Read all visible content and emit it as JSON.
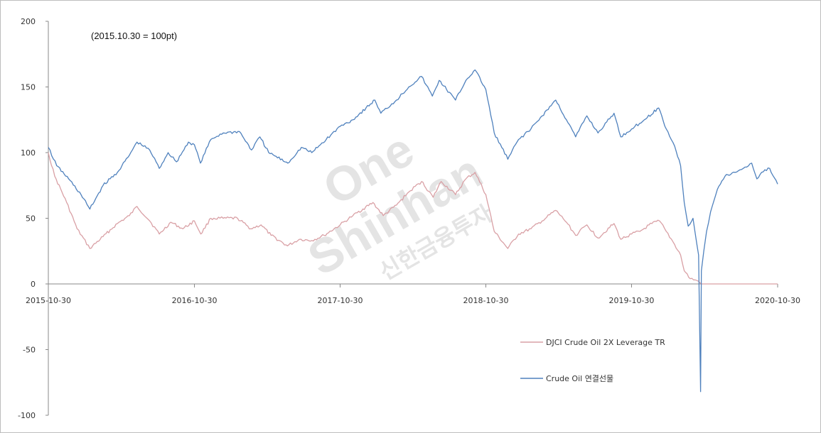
{
  "chart_data": {
    "type": "line",
    "annotation": "(2015.10.30 = 100pt)",
    "x_ticks": [
      "2015-10-30",
      "2016-10-30",
      "2017-10-30",
      "2018-10-30",
      "2019-10-30",
      "2020-10-30"
    ],
    "y_ticks": [
      200,
      150,
      100,
      50,
      0,
      -50,
      -100
    ],
    "ylim": [
      -100,
      200
    ],
    "xlim": [
      "2015-10-30",
      "2020-10-30"
    ],
    "grid": false,
    "legend_position": "bottom-right",
    "series": [
      {
        "name": "DJCI Crude Oil 2X Leverage TR",
        "color": "#d9a0a5",
        "points": [
          [
            "2015-10-30",
            100
          ],
          [
            "2015-11-15",
            82
          ],
          [
            "2015-12-15",
            62
          ],
          [
            "2016-01-10",
            42
          ],
          [
            "2016-02-11",
            27
          ],
          [
            "2016-03-15",
            36
          ],
          [
            "2016-04-20",
            46
          ],
          [
            "2016-05-20",
            52
          ],
          [
            "2016-06-08",
            59
          ],
          [
            "2016-07-10",
            48
          ],
          [
            "2016-08-03",
            38
          ],
          [
            "2016-09-01",
            47
          ],
          [
            "2016-10-01",
            42
          ],
          [
            "2016-10-30",
            48
          ],
          [
            "2016-11-15",
            38
          ],
          [
            "2016-12-10",
            50
          ],
          [
            "2017-01-10",
            50
          ],
          [
            "2017-02-15",
            50
          ],
          [
            "2017-03-20",
            42
          ],
          [
            "2017-04-15",
            45
          ],
          [
            "2017-05-10",
            37
          ],
          [
            "2017-06-20",
            29
          ],
          [
            "2017-07-20",
            34
          ],
          [
            "2017-08-20",
            33
          ],
          [
            "2017-09-20",
            37
          ],
          [
            "2017-10-30",
            45
          ],
          [
            "2017-12-01",
            52
          ],
          [
            "2018-01-20",
            62
          ],
          [
            "2018-02-15",
            52
          ],
          [
            "2018-03-20",
            60
          ],
          [
            "2018-04-20",
            70
          ],
          [
            "2018-05-22",
            78
          ],
          [
            "2018-06-20",
            66
          ],
          [
            "2018-07-10",
            78
          ],
          [
            "2018-08-15",
            68
          ],
          [
            "2018-09-10",
            80
          ],
          [
            "2018-10-03",
            85
          ],
          [
            "2018-10-30",
            68
          ],
          [
            "2018-11-20",
            40
          ],
          [
            "2018-12-24",
            27
          ],
          [
            "2019-01-20",
            38
          ],
          [
            "2019-02-20",
            42
          ],
          [
            "2019-03-20",
            48
          ],
          [
            "2019-04-23",
            56
          ],
          [
            "2019-05-20",
            47
          ],
          [
            "2019-06-12",
            37
          ],
          [
            "2019-07-10",
            45
          ],
          [
            "2019-08-07",
            35
          ],
          [
            "2019-09-16",
            46
          ],
          [
            "2019-10-03",
            34
          ],
          [
            "2019-10-30",
            38
          ],
          [
            "2019-11-20",
            40
          ],
          [
            "2019-12-20",
            46
          ],
          [
            "2020-01-08",
            48
          ],
          [
            "2020-01-25",
            40
          ],
          [
            "2020-02-15",
            30
          ],
          [
            "2020-03-01",
            22
          ],
          [
            "2020-03-10",
            10
          ],
          [
            "2020-03-25",
            4
          ],
          [
            "2020-04-15",
            2
          ],
          [
            "2020-04-21",
            0
          ],
          [
            "2020-06-01",
            0
          ],
          [
            "2020-10-30",
            0
          ]
        ]
      },
      {
        "name": "Crude Oil 연결선물",
        "color": "#4f81bd",
        "points": [
          [
            "2015-10-30",
            104
          ],
          [
            "2015-11-20",
            90
          ],
          [
            "2015-12-20",
            80
          ],
          [
            "2016-01-20",
            68
          ],
          [
            "2016-02-11",
            57
          ],
          [
            "2016-03-15",
            75
          ],
          [
            "2016-04-20",
            85
          ],
          [
            "2016-05-20",
            98
          ],
          [
            "2016-06-08",
            108
          ],
          [
            "2016-07-10",
            102
          ],
          [
            "2016-08-03",
            88
          ],
          [
            "2016-08-25",
            100
          ],
          [
            "2016-09-15",
            93
          ],
          [
            "2016-10-15",
            108
          ],
          [
            "2016-10-30",
            106
          ],
          [
            "2016-11-14",
            92
          ],
          [
            "2016-12-10",
            110
          ],
          [
            "2017-01-10",
            115
          ],
          [
            "2017-02-20",
            116
          ],
          [
            "2017-03-22",
            102
          ],
          [
            "2017-04-12",
            112
          ],
          [
            "2017-05-04",
            100
          ],
          [
            "2017-06-21",
            92
          ],
          [
            "2017-07-25",
            104
          ],
          [
            "2017-08-20",
            100
          ],
          [
            "2017-09-25",
            110
          ],
          [
            "2017-10-30",
            120
          ],
          [
            "2017-12-01",
            125
          ],
          [
            "2018-01-25",
            140
          ],
          [
            "2018-02-09",
            130
          ],
          [
            "2018-03-20",
            140
          ],
          [
            "2018-04-20",
            150
          ],
          [
            "2018-05-22",
            158
          ],
          [
            "2018-06-18",
            143
          ],
          [
            "2018-07-05",
            155
          ],
          [
            "2018-08-15",
            140
          ],
          [
            "2018-09-10",
            155
          ],
          [
            "2018-10-03",
            163
          ],
          [
            "2018-10-30",
            148
          ],
          [
            "2018-11-20",
            115
          ],
          [
            "2018-12-24",
            95
          ],
          [
            "2019-01-20",
            110
          ],
          [
            "2019-02-20",
            118
          ],
          [
            "2019-03-20",
            128
          ],
          [
            "2019-04-23",
            140
          ],
          [
            "2019-05-20",
            125
          ],
          [
            "2019-06-12",
            112
          ],
          [
            "2019-07-10",
            128
          ],
          [
            "2019-08-07",
            115
          ],
          [
            "2019-09-16",
            130
          ],
          [
            "2019-10-03",
            112
          ],
          [
            "2019-10-30",
            118
          ],
          [
            "2019-12-01",
            125
          ],
          [
            "2020-01-06",
            134
          ],
          [
            "2020-01-25",
            118
          ],
          [
            "2020-02-15",
            105
          ],
          [
            "2020-03-01",
            90
          ],
          [
            "2020-03-10",
            62
          ],
          [
            "2020-03-20",
            44
          ],
          [
            "2020-04-01",
            50
          ],
          [
            "2020-04-15",
            22
          ],
          [
            "2020-04-20",
            -82
          ],
          [
            "2020-04-22",
            10
          ],
          [
            "2020-04-28",
            25
          ],
          [
            "2020-05-05",
            40
          ],
          [
            "2020-05-15",
            55
          ],
          [
            "2020-06-01",
            72
          ],
          [
            "2020-06-20",
            82
          ],
          [
            "2020-07-15",
            85
          ],
          [
            "2020-08-05",
            88
          ],
          [
            "2020-08-26",
            92
          ],
          [
            "2020-09-08",
            80
          ],
          [
            "2020-09-20",
            85
          ],
          [
            "2020-10-10",
            88
          ],
          [
            "2020-10-30",
            76
          ]
        ]
      }
    ]
  },
  "watermark": {
    "line1": "One",
    "line2": "Shinhan",
    "line3": "신한금융투자"
  }
}
